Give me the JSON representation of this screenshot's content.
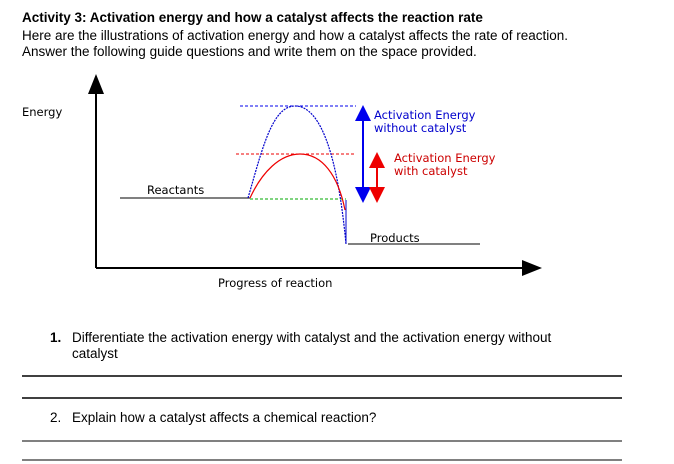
{
  "header": {
    "title": "Activity 3: Activation energy and how a catalyst affects the reaction rate",
    "intro": [
      "Here are the illustrations of activation energy and how a catalyst affects the rate of reaction.",
      "Answer the following guide questions and write them on the space provided."
    ]
  },
  "diagram": {
    "y_label": "Energy",
    "x_label": "Progress of reaction",
    "reactants": "Reactants",
    "products": "Products",
    "uncatalyzed": [
      "Activation Energy",
      "without catalyst"
    ],
    "catalyzed": [
      "Activation Energy",
      "with catalyst"
    ]
  },
  "questions": [
    {
      "number": "1.",
      "lines": [
        "Differentiate the activation energy with catalyst and the activation energy without",
        "catalyst"
      ]
    },
    {
      "number": "2.",
      "lines": [
        "Explain how a catalyst affects a chemical reaction?"
      ]
    }
  ]
}
